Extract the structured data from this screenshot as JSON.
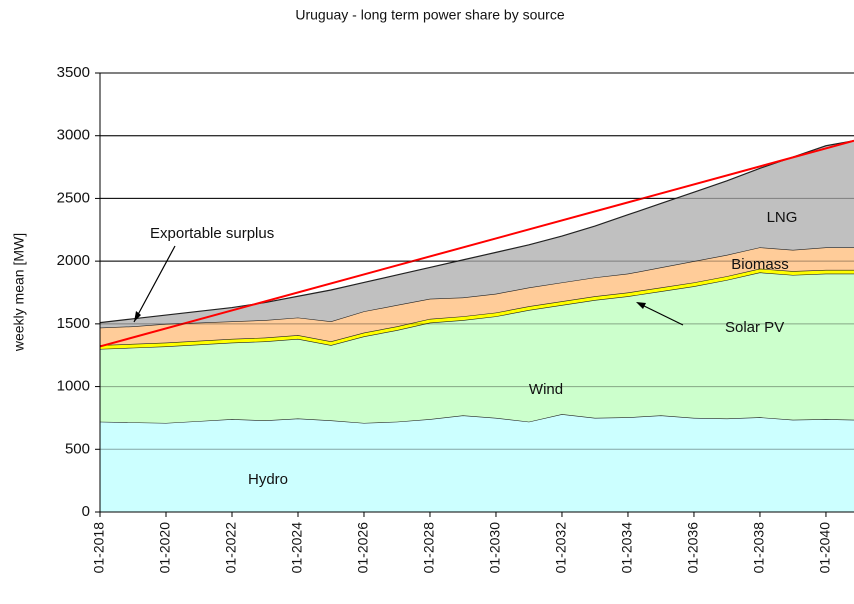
{
  "chart_data": {
    "type": "stacked-area",
    "title": "Uruguay - long term power share by source",
    "y_label": "weekly mean [MW]",
    "x": [
      2018,
      2019,
      2020,
      2021,
      2022,
      2023,
      2024,
      2025,
      2026,
      2027,
      2028,
      2029,
      2030,
      2031,
      2032,
      2033,
      2034,
      2035,
      2036,
      2037,
      2038,
      2039,
      2040,
      2040.85
    ],
    "xlim": [
      2018,
      2040.85
    ],
    "xticks": [
      {
        "value": 2018,
        "label": "01-2018"
      },
      {
        "value": 2020,
        "label": "01-2020"
      },
      {
        "value": 2022,
        "label": "01-2022"
      },
      {
        "value": 2024,
        "label": "01-2024"
      },
      {
        "value": 2026,
        "label": "01-2026"
      },
      {
        "value": 2028,
        "label": "01-2028"
      },
      {
        "value": 2030,
        "label": "01-2030"
      },
      {
        "value": 2032,
        "label": "01-2032"
      },
      {
        "value": 2034,
        "label": "01-2034"
      },
      {
        "value": 2036,
        "label": "01-2036"
      },
      {
        "value": 2038,
        "label": "01-2038"
      },
      {
        "value": 2040,
        "label": "01-2040"
      }
    ],
    "ylim": [
      0,
      3500
    ],
    "yticks": [
      0,
      500,
      1000,
      1500,
      2000,
      2500,
      3000,
      3500
    ],
    "grid": true,
    "series": [
      {
        "name": "Hydro",
        "color": "#ccffff",
        "values": [
          720,
          715,
          710,
          725,
          740,
          730,
          745,
          730,
          710,
          720,
          740,
          770,
          750,
          720,
          780,
          750,
          755,
          770,
          750,
          745,
          755,
          735,
          740,
          735
        ]
      },
      {
        "name": "Wind",
        "color": "#ccffcc",
        "values": [
          580,
          595,
          610,
          610,
          610,
          630,
          635,
          600,
          690,
          730,
          770,
          760,
          810,
          890,
          870,
          940,
          965,
          990,
          1050,
          1105,
          1155,
          1155,
          1160,
          1165
        ]
      },
      {
        "name": "Solar PV",
        "color": "#ffff00",
        "values": [
          30,
          30,
          30,
          30,
          30,
          30,
          30,
          30,
          30,
          30,
          30,
          30,
          30,
          30,
          30,
          30,
          30,
          30,
          30,
          30,
          30,
          30,
          30,
          30
        ]
      },
      {
        "name": "Biomass",
        "color": "#ffcc99",
        "values": [
          140,
          140,
          150,
          145,
          140,
          140,
          140,
          160,
          170,
          170,
          160,
          150,
          150,
          150,
          150,
          150,
          150,
          160,
          170,
          170,
          170,
          170,
          180,
          180
        ]
      },
      {
        "name": "LNG",
        "color": "#c0c0c0",
        "values": [
          40,
          60,
          70,
          90,
          110,
          140,
          170,
          250,
          230,
          240,
          250,
          300,
          330,
          340,
          370,
          410,
          470,
          510,
          550,
          590,
          630,
          740,
          810,
          850
        ]
      }
    ],
    "demand_line": {
      "x": [
        2018,
        2040.85
      ],
      "values": [
        1320,
        2960
      ],
      "color": "#ff0000"
    },
    "annotation": "Exportable surplus"
  }
}
